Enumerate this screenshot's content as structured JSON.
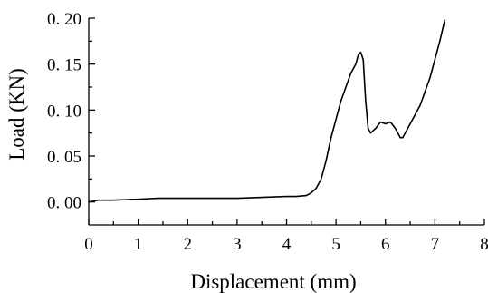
{
  "chart_data": {
    "type": "line",
    "title": "",
    "xlabel": "Displacement (mm)",
    "ylabel": "Load (KN)",
    "xlim": [
      0,
      8
    ],
    "ylim": [
      -0.025,
      0.2
    ],
    "xticks": [
      0,
      1,
      2,
      3,
      4,
      5,
      6,
      7,
      8
    ],
    "xtick_labels": [
      "0",
      "1",
      "2",
      "3",
      "4",
      "5",
      "6",
      "7",
      "8"
    ],
    "yticks": [
      0.0,
      0.05,
      0.1,
      0.15,
      0.2
    ],
    "ytick_labels": [
      "0. 00",
      "0. 05",
      "0. 10",
      "0. 15",
      "0. 20"
    ],
    "grid": false,
    "legend": "none",
    "line_color": "#000000",
    "series": [
      {
        "x": [
          0.0,
          0.2,
          0.5,
          1.0,
          1.4,
          2.0,
          2.5,
          3.0,
          3.5,
          4.0,
          4.2,
          4.4,
          4.5,
          4.6,
          4.7,
          4.8,
          4.9,
          5.0,
          5.1,
          5.2,
          5.3,
          5.35,
          5.4,
          5.45,
          5.5,
          5.55,
          5.6,
          5.65,
          5.7,
          5.8,
          5.9,
          6.0,
          6.1,
          6.2,
          6.25,
          6.3,
          6.35,
          6.4,
          6.5,
          6.6,
          6.7,
          6.8,
          6.9,
          7.0,
          7.1,
          7.2
        ],
        "y": [
          0.0,
          0.002,
          0.002,
          0.003,
          0.004,
          0.004,
          0.004,
          0.004,
          0.005,
          0.006,
          0.006,
          0.007,
          0.01,
          0.015,
          0.025,
          0.045,
          0.07,
          0.09,
          0.11,
          0.125,
          0.14,
          0.145,
          0.15,
          0.16,
          0.163,
          0.155,
          0.11,
          0.08,
          0.075,
          0.08,
          0.087,
          0.085,
          0.087,
          0.08,
          0.075,
          0.07,
          0.07,
          0.075,
          0.085,
          0.095,
          0.105,
          0.12,
          0.135,
          0.155,
          0.175,
          0.198
        ]
      }
    ]
  }
}
